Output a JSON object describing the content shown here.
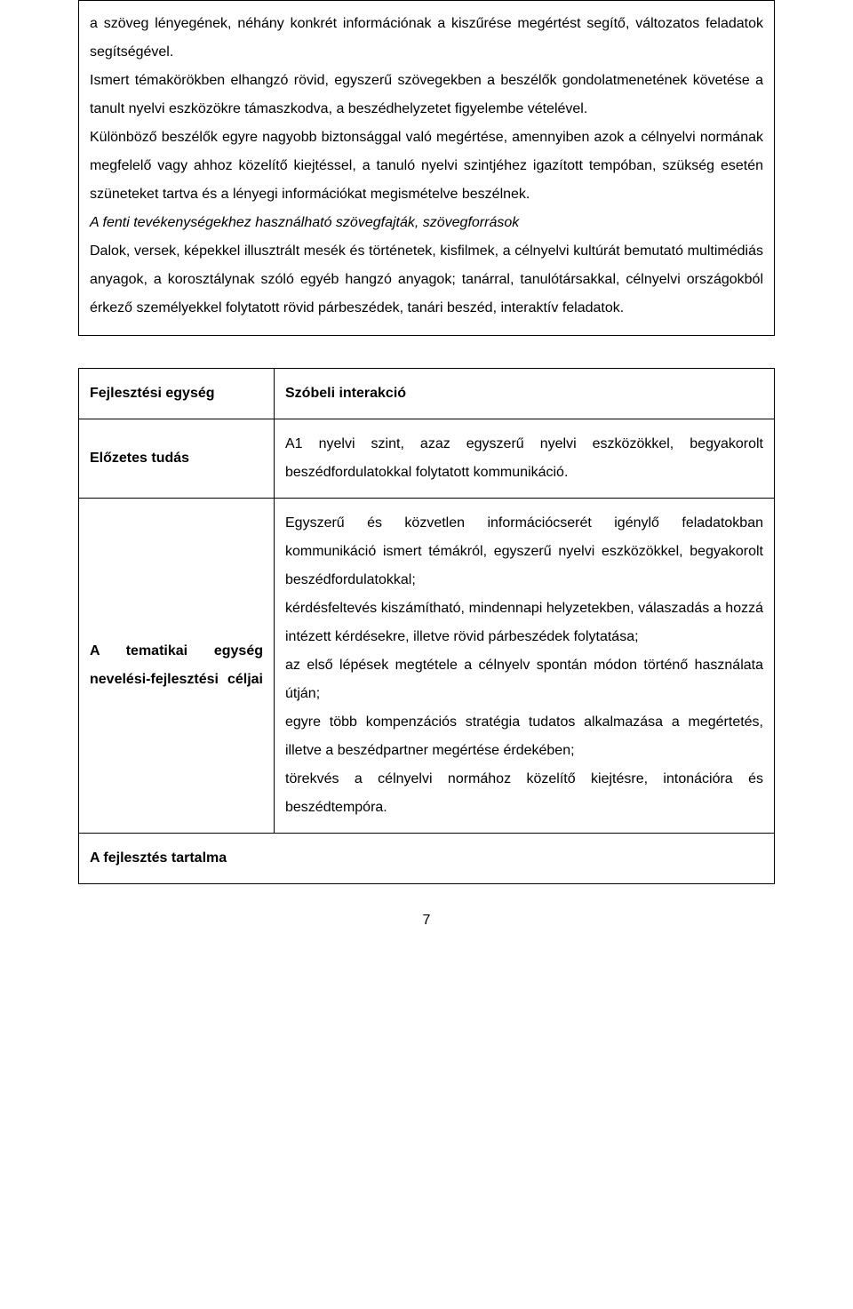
{
  "box1": {
    "p1": "a szöveg lényegének, néhány konkrét információnak a kiszűrése megértést segítő, változatos feladatok segítségével.",
    "p2": "Ismert témakörökben elhangzó rövid, egyszerű szövegekben a beszélők gondolatmenetének követése a tanult nyelvi eszközökre támaszkodva, a beszédhelyzetet figyelembe vételével.",
    "p3": "Különböző beszélők egyre nagyobb biztonsággal való megértése, amennyiben azok a célnyelvi normának megfelelő vagy ahhoz közelítő kiejtéssel, a tanuló nyelvi szintjéhez igazított tempóban, szükség esetén szüneteket tartva és a lényegi információkat megismételve beszélnek.",
    "p4_italic": "A fenti tevékenységekhez használható szövegfajták, szövegforrások",
    "p5": "Dalok, versek, képekkel illusztrált mesék és történetek, kisfilmek, a célnyelvi kultúrát bemutató multimédiás anyagok, a korosztálynak szóló egyéb hangzó anyagok; tanárral, tanulótársakkal, célnyelvi országokból érkező személyekkel folytatott rövid párbeszédek, tanári beszéd, interaktív feladatok."
  },
  "table": {
    "r1_left": "Fejlesztési egység",
    "r1_right": "Szóbeli interakció",
    "r2_left": "Előzetes tudás",
    "r2_right": "A1 nyelvi szint, azaz egyszerű nyelvi eszközökkel, begyakorolt beszédfordulatokkal folytatott kommunikáció.",
    "r3_left": "A tematikai egység nevelési-fejlesztési céljai",
    "r3_right_p1": "Egyszerű és közvetlen információcserét igénylő feladatokban kommunikáció ismert témákról, egyszerű nyelvi eszközökkel, begyakorolt beszédfordulatokkal;",
    "r3_right_p2": "kérdésfeltevés kiszámítható, mindennapi helyzetekben, válaszadás a hozzá intézett kérdésekre, illetve rövid párbeszédek folytatása;",
    "r3_right_p3": "az első lépések megtétele a célnyelv spontán módon történő használata útján;",
    "r3_right_p4": "egyre több kompenzációs stratégia tudatos alkalmazása a megértetés, illetve a beszédpartner megértése érdekében;",
    "r3_right_p5": "törekvés a célnyelvi normához közelítő kiejtésre, intonációra és beszédtempóra.",
    "r4_left": "A fejlesztés tartalma"
  },
  "page_number": "7"
}
